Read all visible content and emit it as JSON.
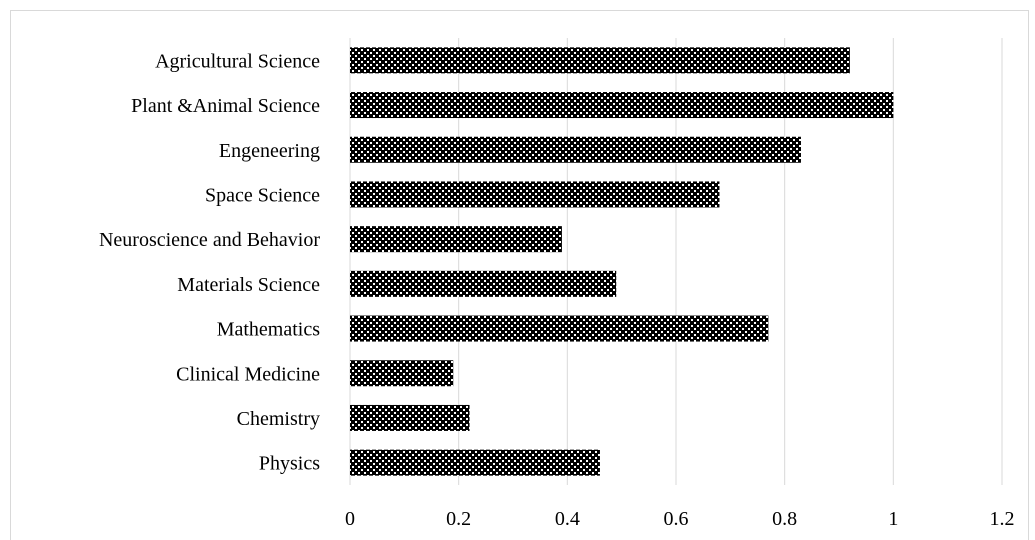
{
  "chart_data": {
    "type": "bar",
    "orientation": "horizontal",
    "categories": [
      "Agricultural Science",
      "Plant &Animal Science",
      "Engeneering",
      "Space Science",
      "Neuroscience and Behavior",
      "Materials Science",
      "Mathematics",
      "Clinical Medicine",
      "Chemistry",
      "Physics"
    ],
    "values": [
      0.92,
      1.0,
      0.83,
      0.68,
      0.39,
      0.49,
      0.77,
      0.19,
      0.22,
      0.46
    ],
    "xlim": [
      0,
      1.2
    ],
    "x_ticks": [
      0,
      0.2,
      0.4,
      0.6,
      0.8,
      1,
      1.2
    ],
    "x_tick_labels": [
      "0",
      "0.2",
      "0.4",
      "0.6",
      "0.8",
      "1",
      "1.2"
    ],
    "grid": "vertical",
    "bar_fill": "crosshatch pattern",
    "colors": {
      "bar_dark": "#000000",
      "bar_light": "#ffffff",
      "grid": "#d9d9d9",
      "border": "#d9d9d9",
      "text": "#000000"
    },
    "title": "",
    "xlabel": "",
    "ylabel": ""
  }
}
